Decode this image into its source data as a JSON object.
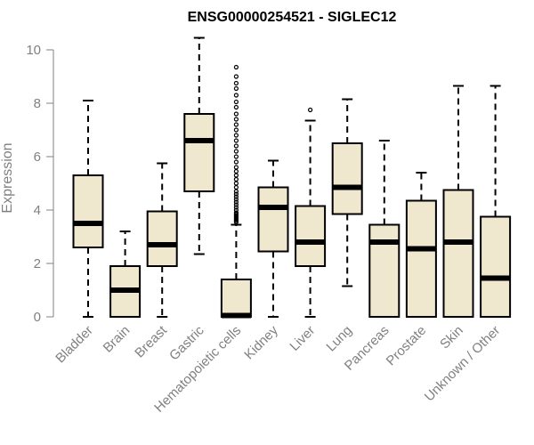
{
  "chart_data": {
    "type": "boxplot",
    "title": "ENSG00000254521 - SIGLEC12",
    "ylabel": "Expression",
    "ylim": [
      0,
      10
    ],
    "yticks": [
      0,
      2,
      4,
      6,
      8,
      10
    ],
    "grid": false,
    "legend": "none",
    "colors": {
      "box_fill": "#EFE8CF",
      "stroke": "#000000",
      "axis": "#808080"
    },
    "categories": [
      "Bladder",
      "Brain",
      "Breast",
      "Gastric",
      "Hematopoietic cells",
      "Kidney",
      "Liver",
      "Lung",
      "Pancreas",
      "Prostate",
      "Skin",
      "Unknown / Other"
    ],
    "boxes": [
      {
        "min": 0.0,
        "q1": 2.6,
        "median": 3.5,
        "q3": 5.3,
        "max": 8.1,
        "outliers": []
      },
      {
        "min": 0.0,
        "q1": 0.0,
        "median": 1.0,
        "q3": 1.9,
        "max": 3.2,
        "outliers": []
      },
      {
        "min": 0.0,
        "q1": 1.9,
        "median": 2.7,
        "q3": 3.95,
        "max": 5.75,
        "outliers": []
      },
      {
        "min": 2.35,
        "q1": 4.7,
        "median": 6.6,
        "q3": 7.6,
        "max": 10.45,
        "outliers": []
      },
      {
        "min": 0.0,
        "q1": 0.0,
        "median": 0.05,
        "q3": 1.4,
        "max": 3.45,
        "outliers": [
          9.35,
          9.0,
          8.75,
          8.55,
          8.3,
          8.05,
          7.85,
          7.6,
          7.4,
          7.2,
          7.0,
          6.8,
          6.6,
          6.4,
          6.2,
          6.0,
          5.8,
          5.6,
          5.45,
          5.3,
          5.15,
          5.0,
          4.85,
          4.7,
          4.6,
          4.5,
          4.4,
          4.3,
          4.2,
          4.1,
          4.0,
          3.9,
          3.85,
          3.8,
          3.75,
          3.7,
          3.65,
          3.6,
          3.55
        ]
      },
      {
        "min": 0.0,
        "q1": 2.45,
        "median": 4.1,
        "q3": 4.85,
        "max": 5.85,
        "outliers": []
      },
      {
        "min": 0.0,
        "q1": 1.9,
        "median": 2.8,
        "q3": 4.15,
        "max": 7.35,
        "outliers": [
          7.75
        ]
      },
      {
        "min": 1.15,
        "q1": 3.85,
        "median": 4.85,
        "q3": 6.5,
        "max": 8.15,
        "outliers": []
      },
      {
        "min": 0.0,
        "q1": 0.0,
        "median": 2.8,
        "q3": 3.45,
        "max": 6.6,
        "outliers": []
      },
      {
        "min": 0.0,
        "q1": 0.0,
        "median": 2.55,
        "q3": 4.35,
        "max": 5.4,
        "outliers": []
      },
      {
        "min": 0.0,
        "q1": 0.0,
        "median": 2.8,
        "q3": 4.75,
        "max": 8.65,
        "outliers": []
      },
      {
        "min": 0.0,
        "q1": 0.0,
        "median": 1.45,
        "q3": 3.75,
        "max": 8.65,
        "outliers": []
      }
    ]
  }
}
